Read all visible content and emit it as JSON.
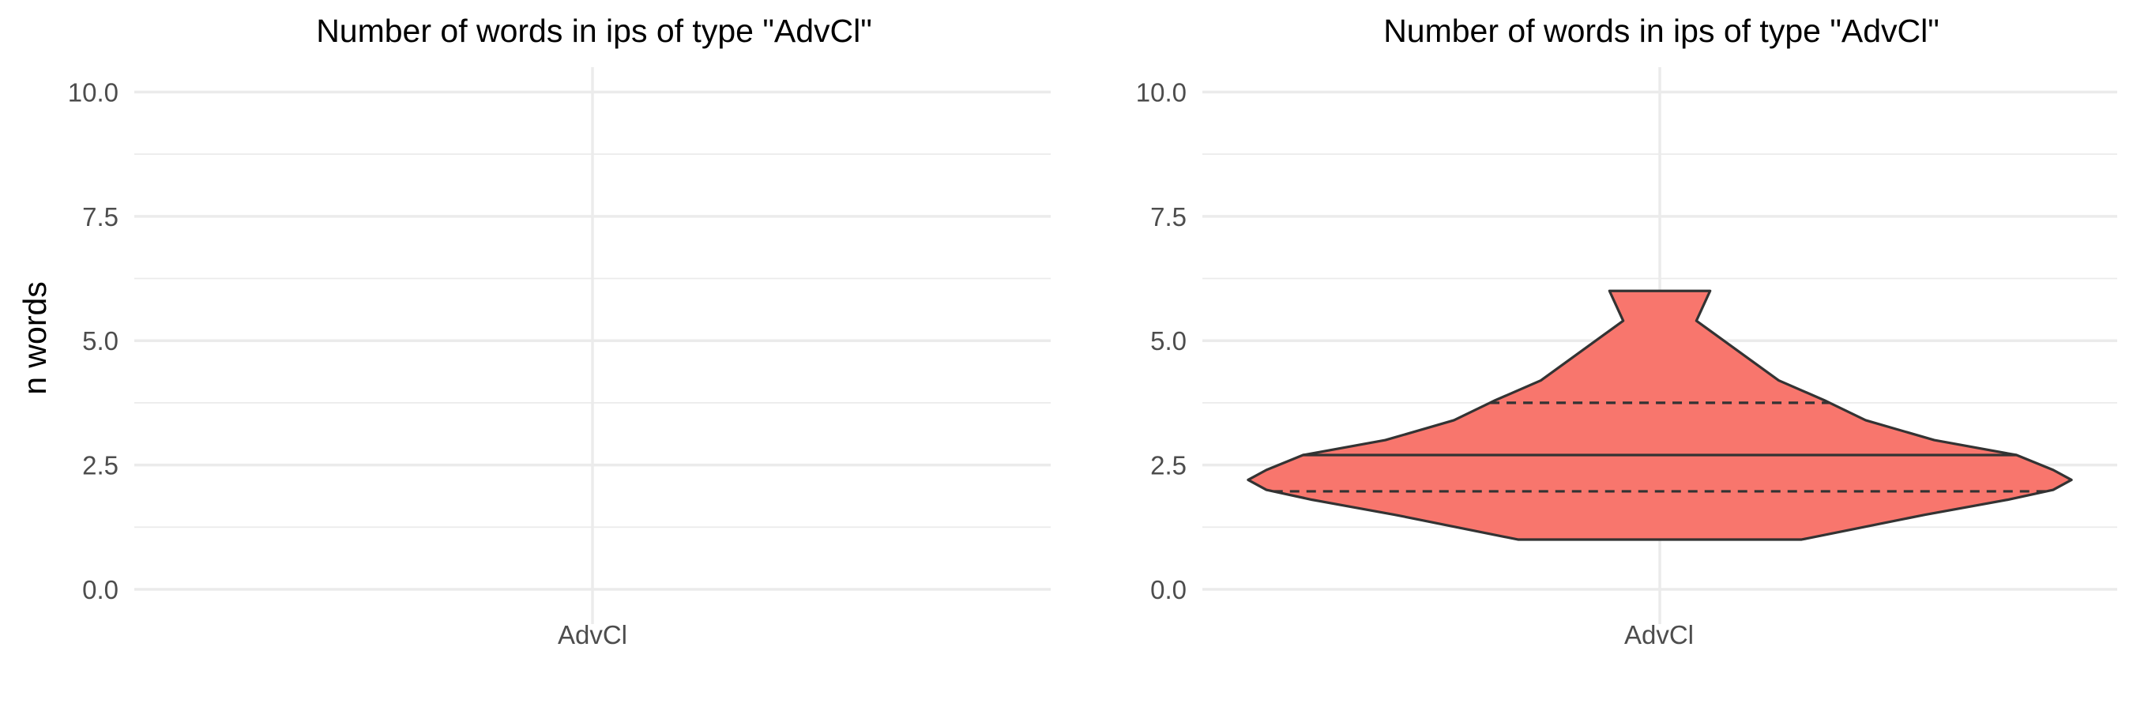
{
  "chart_data": [
    {
      "type": "violin",
      "title": "Number of words in ips of type \"AdvCl\"",
      "xlabel": "",
      "ylabel": "n words",
      "categories": [
        "AdvCl"
      ],
      "ylim": [
        -0.7,
        10.5
      ],
      "yticks": [
        "0.0",
        "2.5",
        "5.0",
        "7.5",
        "10.0"
      ],
      "grid": true,
      "series": []
    },
    {
      "type": "violin",
      "title": "Number of words in ips of type \"AdvCl\"",
      "xlabel": "",
      "ylabel": "",
      "categories": [
        "AdvCl"
      ],
      "ylim": [
        -0.7,
        10.5
      ],
      "yticks": [
        "0.0",
        "2.5",
        "5.0",
        "7.5",
        "10.0"
      ],
      "grid": true,
      "series": [
        {
          "category": "AdvCl",
          "fill": "#F8766D",
          "outline": "#333333",
          "density": [
            {
              "y": 1.0,
              "half_width": 0.31
            },
            {
              "y": 1.5,
              "half_width": 0.58
            },
            {
              "y": 1.8,
              "half_width": 0.76
            },
            {
              "y": 2.0,
              "half_width": 0.86
            },
            {
              "y": 2.2,
              "half_width": 0.9
            },
            {
              "y": 2.4,
              "half_width": 0.86
            },
            {
              "y": 2.7,
              "half_width": 0.78
            },
            {
              "y": 3.0,
              "half_width": 0.6
            },
            {
              "y": 3.4,
              "half_width": 0.45
            },
            {
              "y": 3.8,
              "half_width": 0.36
            },
            {
              "y": 4.2,
              "half_width": 0.26
            },
            {
              "y": 4.8,
              "half_width": 0.17
            },
            {
              "y": 5.4,
              "half_width": 0.08
            },
            {
              "y": 6.0,
              "half_width": 0.11
            }
          ],
          "quantiles": [
            {
              "q": 0.25,
              "y": 1.97,
              "style": "dashed"
            },
            {
              "q": 0.5,
              "y": 2.7,
              "style": "solid"
            },
            {
              "q": 0.75,
              "y": 3.75,
              "style": "dashed"
            }
          ]
        }
      ]
    }
  ]
}
